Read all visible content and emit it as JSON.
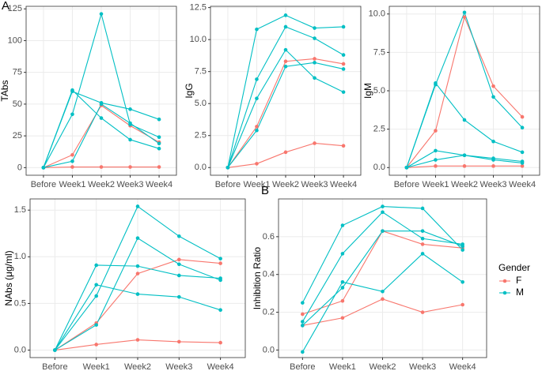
{
  "chart_data": [
    {
      "type": "line",
      "panel": "A",
      "y_label": "TAbs",
      "categories": [
        "Before",
        "Week1",
        "Week2",
        "Week3",
        "Week4"
      ],
      "ylim": [
        -6,
        127
      ],
      "yticks": [
        0,
        25,
        50,
        75,
        100,
        125
      ],
      "grid": true,
      "series": [
        {
          "color": "#F8766D",
          "values": [
            0,
            0.5,
            0.5,
            0.5,
            0.5
          ]
        },
        {
          "color": "#F8766D",
          "values": [
            0,
            10,
            49,
            33,
            20
          ]
        },
        {
          "color": "#00BFC4",
          "values": [
            0,
            42,
            121,
            34,
            24
          ]
        },
        {
          "color": "#00BFC4",
          "values": [
            0,
            60,
            51,
            46,
            38
          ]
        },
        {
          "color": "#00BFC4",
          "values": [
            0,
            61,
            39,
            22,
            15
          ]
        },
        {
          "color": "#00BFC4",
          "values": [
            0,
            5,
            50,
            35,
            19
          ]
        }
      ]
    },
    {
      "type": "line",
      "y_label": "IgG",
      "categories": [
        "Before",
        "Week1",
        "Week2",
        "Week3",
        "Week4"
      ],
      "ylim": [
        -0.6,
        12.6
      ],
      "yticks": [
        {
          "value": 0,
          "label": "0.0"
        },
        {
          "value": 2.5,
          "label": "2.5"
        },
        {
          "value": 5,
          "label": "5.0"
        },
        {
          "value": 7.5,
          "label": "7.5"
        },
        {
          "value": 10,
          "label": "10.0"
        },
        {
          "value": 12.5,
          "label": "12.5"
        }
      ],
      "grid": true,
      "series": [
        {
          "color": "#F8766D",
          "values": [
            0,
            0.3,
            1.2,
            1.9,
            1.7
          ]
        },
        {
          "color": "#F8766D",
          "values": [
            0,
            3.2,
            8.3,
            8.5,
            8.1
          ]
        },
        {
          "color": "#00BFC4",
          "values": [
            0,
            10.8,
            11.9,
            10.9,
            11.0
          ]
        },
        {
          "color": "#00BFC4",
          "values": [
            0,
            6.9,
            11.0,
            10.1,
            8.8
          ]
        },
        {
          "color": "#00BFC4",
          "values": [
            0,
            5.4,
            9.2,
            7.0,
            5.9
          ]
        },
        {
          "color": "#00BFC4",
          "values": [
            0,
            2.9,
            7.9,
            8.2,
            7.7
          ]
        }
      ]
    },
    {
      "type": "line",
      "y_label": "IgM",
      "categories": [
        "Before",
        "Week1",
        "Week2",
        "Week3",
        "Week4"
      ],
      "ylim": [
        -0.5,
        10.5
      ],
      "yticks": [
        {
          "value": 0,
          "label": "0.0"
        },
        {
          "value": 2.5,
          "label": "2.5"
        },
        {
          "value": 5,
          "label": "5.0"
        },
        {
          "value": 7.5,
          "label": "7.5"
        },
        {
          "value": 10,
          "label": "10.0"
        }
      ],
      "grid": true,
      "series": [
        {
          "color": "#F8766D",
          "values": [
            0,
            0.1,
            0.1,
            0.1,
            0.1
          ]
        },
        {
          "color": "#F8766D",
          "values": [
            0,
            2.4,
            9.8,
            5.3,
            3.3
          ]
        },
        {
          "color": "#00BFC4",
          "values": [
            0,
            5.4,
            10.1,
            4.6,
            2.6
          ]
        },
        {
          "color": "#00BFC4",
          "values": [
            0,
            5.5,
            3.1,
            1.7,
            1.0
          ]
        },
        {
          "color": "#00BFC4",
          "values": [
            0,
            1.1,
            0.8,
            0.5,
            0.3
          ]
        },
        {
          "color": "#00BFC4",
          "values": [
            0,
            0.5,
            0.8,
            0.6,
            0.4
          ]
        }
      ]
    },
    {
      "type": "line",
      "y_label": "NAbs (μg/ml)",
      "categories": [
        "Before",
        "Week1",
        "Week2",
        "Week3",
        "Week4"
      ],
      "ylim": [
        -0.08,
        1.62
      ],
      "yticks": [
        {
          "value": 0,
          "label": "0.0"
        },
        {
          "value": 0.5,
          "label": "0.5"
        },
        {
          "value": 1,
          "label": "1.0"
        },
        {
          "value": 1.5,
          "label": "1.5"
        }
      ],
      "grid": true,
      "series": [
        {
          "color": "#F8766D",
          "values": [
            0,
            0.06,
            0.11,
            0.09,
            0.08
          ]
        },
        {
          "color": "#F8766D",
          "values": [
            0,
            0.29,
            0.82,
            0.97,
            0.93
          ]
        },
        {
          "color": "#00BFC4",
          "values": [
            0,
            0.91,
            0.9,
            0.8,
            0.77
          ]
        },
        {
          "color": "#00BFC4",
          "values": [
            0,
            0.7,
            0.6,
            0.57,
            0.43
          ]
        },
        {
          "color": "#00BFC4",
          "values": [
            0,
            0.58,
            1.54,
            1.22,
            0.98
          ]
        },
        {
          "color": "#00BFC4",
          "values": [
            0,
            0.27,
            1.2,
            0.92,
            0.75
          ]
        }
      ]
    },
    {
      "type": "line",
      "panel": "B",
      "y_label": "Inhibition Ratio",
      "categories": [
        "Before",
        "Week1",
        "Week2",
        "Week3",
        "Week4"
      ],
      "ylim": [
        -0.04,
        0.8
      ],
      "yticks": [
        {
          "value": 0,
          "label": "0.0"
        },
        {
          "value": 0.2,
          "label": "0.2"
        },
        {
          "value": 0.4,
          "label": "0.4"
        },
        {
          "value": 0.6,
          "label": "0.6"
        }
      ],
      "grid": true,
      "legend": {
        "title": "Gender",
        "entries": [
          {
            "name": "F",
            "color": "#F8766D"
          },
          {
            "name": "M",
            "color": "#00BFC4"
          }
        ]
      },
      "series": [
        {
          "color": "#F8766D",
          "values": [
            0.13,
            0.17,
            0.27,
            0.2,
            0.24
          ]
        },
        {
          "color": "#F8766D",
          "values": [
            0.19,
            0.26,
            0.63,
            0.56,
            0.54
          ]
        },
        {
          "color": "#00BFC4",
          "values": [
            0.25,
            0.66,
            0.76,
            0.75,
            0.53
          ]
        },
        {
          "color": "#00BFC4",
          "values": [
            0.15,
            0.51,
            0.73,
            0.59,
            0.56
          ]
        },
        {
          "color": "#00BFC4",
          "values": [
            -0.01,
            0.36,
            0.31,
            0.51,
            0.36
          ]
        },
        {
          "color": "#00BFC4",
          "values": [
            0.13,
            0.33,
            0.63,
            0.63,
            0.55
          ]
        }
      ]
    }
  ]
}
